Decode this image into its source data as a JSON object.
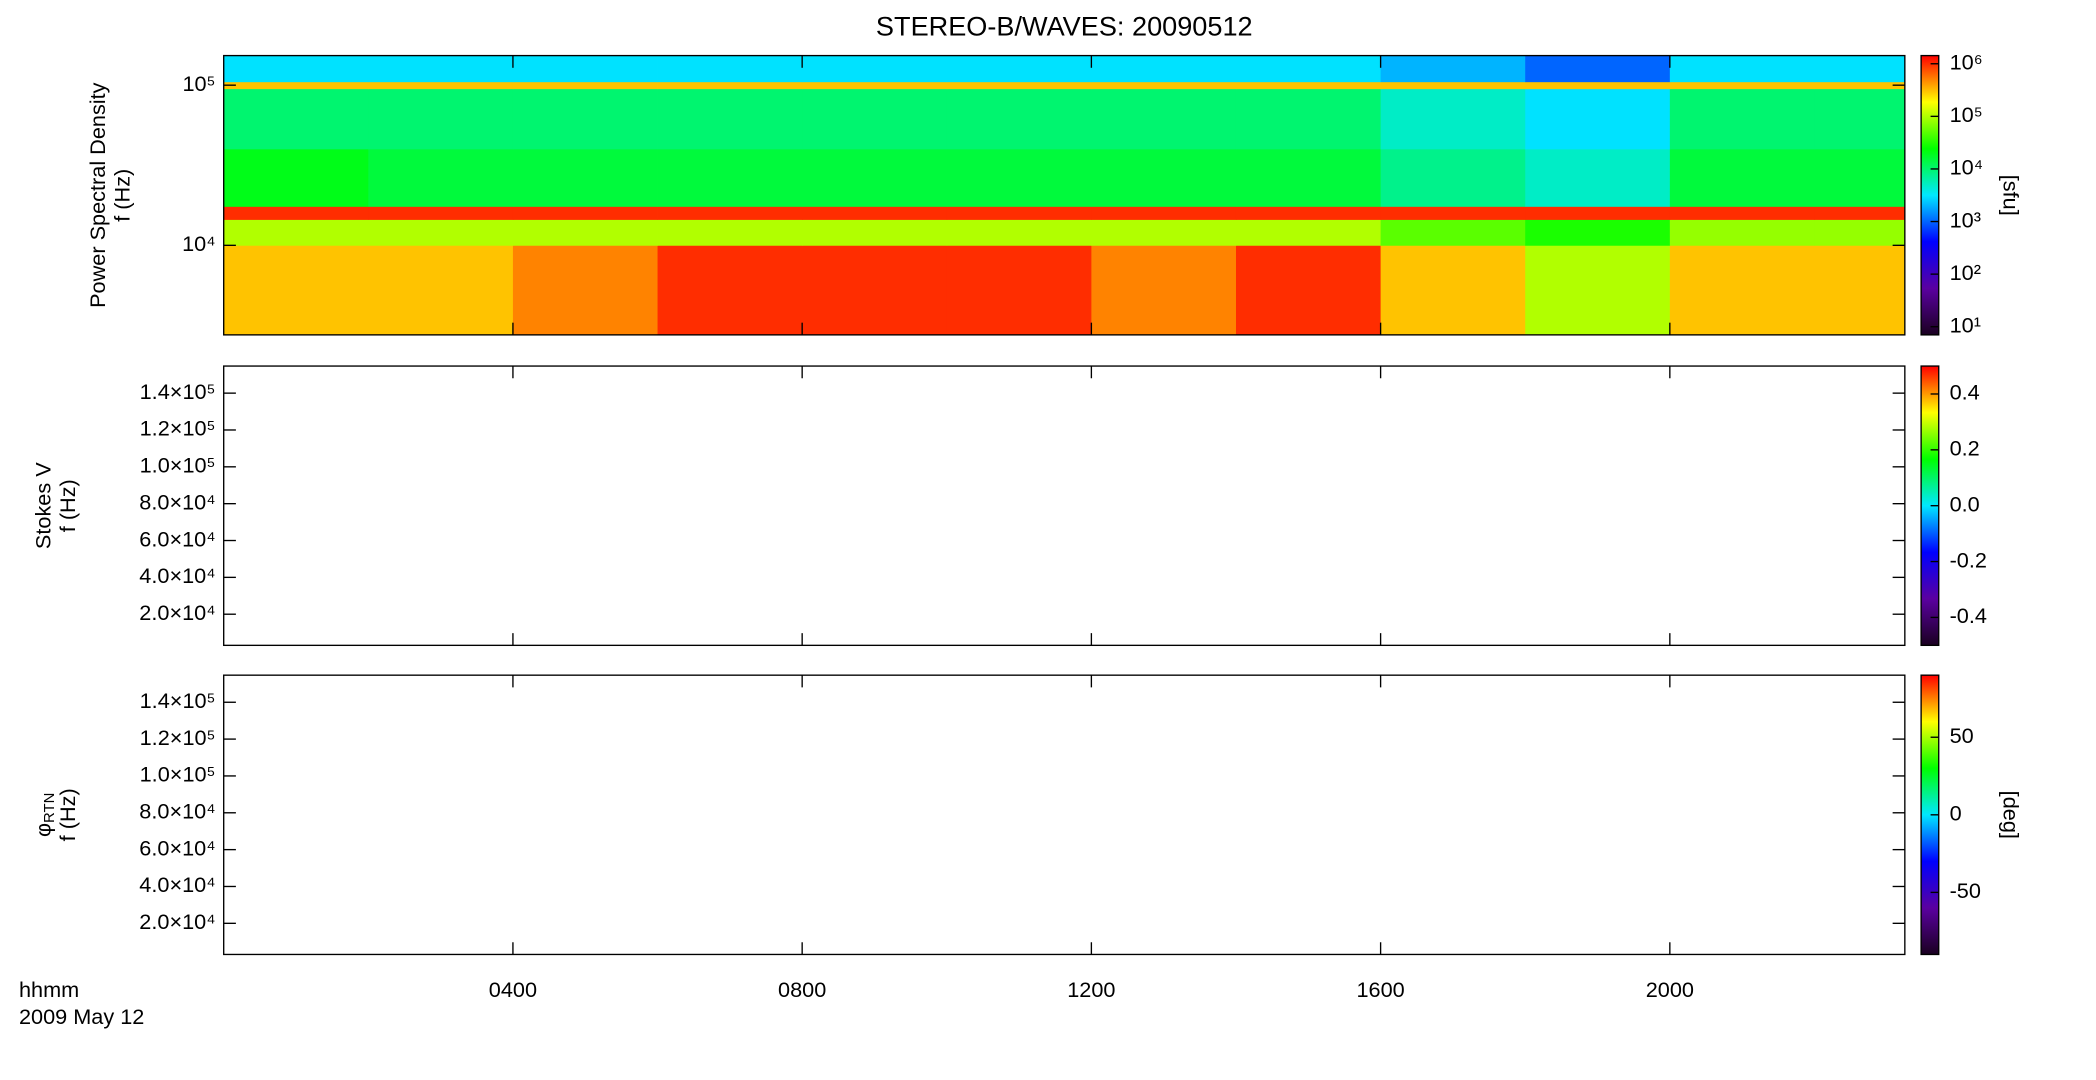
{
  "chart_data": [
    {
      "type": "heatmap",
      "title": "STEREO-B/WAVES: 20090512",
      "ylabel": [
        "Power Spectral Density",
        "f (Hz)"
      ],
      "x_edges": [
        0,
        2,
        4,
        6,
        8,
        10,
        12,
        14,
        16,
        18,
        20,
        22,
        23.25
      ],
      "y_edges": [
        2760,
        10000,
        14500,
        17500,
        40000,
        95000,
        105000,
        153000
      ],
      "z": [
        [
          300000,
          300000,
          500000,
          1000000,
          1000000,
          1000000,
          500000,
          1000000,
          300000,
          100000,
          300000,
          300000
        ],
        [
          100000,
          100000,
          100000,
          100000,
          100000,
          100000,
          100000,
          100000,
          50000,
          30000,
          80000,
          80000
        ],
        [
          1000000,
          1000000,
          1000000,
          1000000,
          1000000,
          1000000,
          1000000,
          1000000,
          1000000,
          1000000,
          1000000,
          1000000
        ],
        [
          20000,
          15000,
          15000,
          15000,
          15000,
          15000,
          15000,
          15000,
          8000,
          5000,
          15000,
          15000
        ],
        [
          10000,
          10000,
          10000,
          10000,
          10000,
          10000,
          10000,
          10000,
          5000,
          3000,
          10000,
          10000
        ],
        [
          300000,
          300000,
          300000,
          300000,
          300000,
          300000,
          300000,
          300000,
          300000,
          300000,
          300000,
          300000
        ],
        [
          3000,
          3000,
          3000,
          3000,
          3000,
          3000,
          3000,
          3000,
          2000,
          1000,
          3000,
          3000
        ]
      ],
      "xlim": [
        0,
        23.25
      ],
      "ylim": [
        2760,
        153000
      ],
      "ylog": true,
      "yticks": [
        {
          "value": 10000,
          "label": "10⁴"
        },
        {
          "value": 100000,
          "label": "10⁵"
        }
      ],
      "zlim": [
        7,
        1430000
      ],
      "zlog": true,
      "zticks": [
        {
          "value": 10,
          "label": "10¹"
        },
        {
          "value": 100,
          "label": "10²"
        },
        {
          "value": 1000,
          "label": "10³"
        },
        {
          "value": 10000,
          "label": "10⁴"
        },
        {
          "value": 100000,
          "label": "10⁵"
        },
        {
          "value": 1000000,
          "label": "10⁶"
        }
      ],
      "colorbar_label": "[sfu]",
      "colormap": [
        "#1a0020",
        "#5a00a0",
        "#0000ff",
        "#00e8ff",
        "#00ff00",
        "#ffff00",
        "#ff0000"
      ]
    },
    {
      "type": "heatmap",
      "ylabel": [
        "Stokes V",
        "f (Hz)"
      ],
      "xlim": [
        0,
        23.25
      ],
      "ylim": [
        3100,
        154700
      ],
      "ylog": false,
      "yticks": [
        {
          "value": 20000,
          "label": "2.0×10⁴"
        },
        {
          "value": 40000,
          "label": "4.0×10⁴"
        },
        {
          "value": 60000,
          "label": "6.0×10⁴"
        },
        {
          "value": 80000,
          "label": "8.0×10⁴"
        },
        {
          "value": 100000,
          "label": "1.0×10⁵"
        },
        {
          "value": 120000,
          "label": "1.2×10⁵"
        },
        {
          "value": 140000,
          "label": "1.4×10⁵"
        }
      ],
      "zlim": [
        -0.5,
        0.5
      ],
      "zlog": false,
      "zticks": [
        -0.4,
        -0.2,
        {
          "value": 0,
          "label": "0.0"
        },
        0.2,
        0.4
      ],
      "colormap": [
        "#1a0020",
        "#5a00a0",
        "#0000ff",
        "#00e8ff",
        "#00ff00",
        "#ffff00",
        "#ff0000"
      ]
    },
    {
      "type": "heatmap",
      "ylabel": [
        "φ",
        "f (Hz)"
      ],
      "ylabel_sub": "RTN",
      "xlabel": [
        "hhmm",
        "2009 May 12"
      ],
      "xlim": [
        0,
        23.25
      ],
      "xticks": [
        {
          "value": 4,
          "label": "0400"
        },
        {
          "value": 8,
          "label": "0800"
        },
        {
          "value": 12,
          "label": "1200"
        },
        {
          "value": 16,
          "label": "1600"
        },
        {
          "value": 20,
          "label": "2000"
        }
      ],
      "ylim": [
        3100,
        154700
      ],
      "ylog": false,
      "yticks": [
        {
          "value": 20000,
          "label": "2.0×10⁴"
        },
        {
          "value": 40000,
          "label": "4.0×10⁴"
        },
        {
          "value": 60000,
          "label": "6.0×10⁴"
        },
        {
          "value": 80000,
          "label": "8.0×10⁴"
        },
        {
          "value": 100000,
          "label": "1.0×10⁵"
        },
        {
          "value": 120000,
          "label": "1.2×10⁵"
        },
        {
          "value": 140000,
          "label": "1.4×10⁵"
        }
      ],
      "zlim": [
        -90,
        90
      ],
      "zlog": false,
      "zticks": [
        -50,
        0,
        50
      ],
      "colorbar_label": "[deg]",
      "colormap": [
        "#1a0020",
        "#5a00a0",
        "#0000ff",
        "#00e8ff",
        "#00ff00",
        "#ffff00",
        "#ff0000"
      ]
    }
  ]
}
